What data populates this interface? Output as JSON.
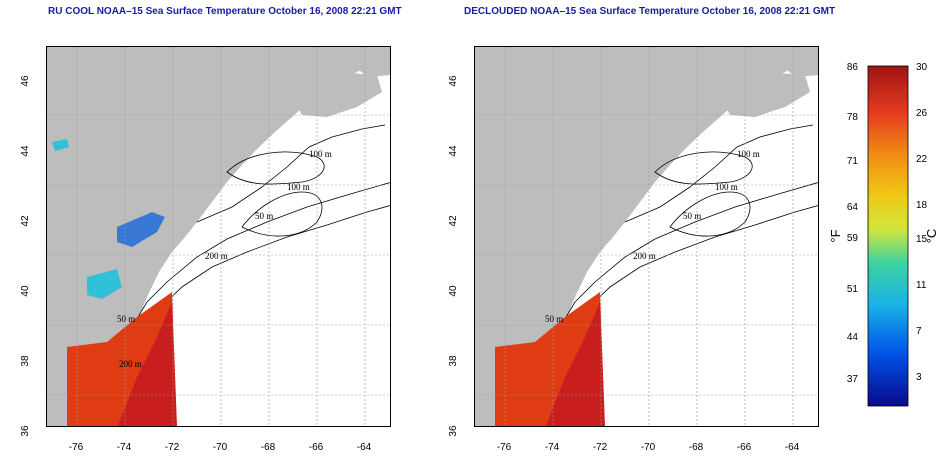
{
  "left_title": "RU COOL NOAA–15 Sea Surface Temperature October 16, 2008 22:21 GMT",
  "right_title": "DECLOUDED NOAA–15 Sea Surface Temperature October 16, 2008 22:21 GMT",
  "x_ticks": [
    "-76",
    "-74",
    "-72",
    "-70",
    "-68",
    "-66",
    "-64"
  ],
  "y_ticks": [
    "36",
    "38",
    "40",
    "42",
    "44",
    "46"
  ],
  "contour_labels": [
    "100 m",
    "100 m",
    "50 m",
    "200 m",
    "50 m",
    "200 m"
  ],
  "colorbar": {
    "f_labels": [
      "86",
      "78",
      "71",
      "64",
      "59",
      "51",
      "44",
      "37"
    ],
    "c_labels": [
      "30",
      "26",
      "22",
      "18",
      "15",
      "11",
      "7",
      "3"
    ],
    "f_unit": "°F",
    "c_unit": "°C"
  },
  "colors": {
    "land": "#bdbdbd",
    "title": "#1a1aa6",
    "warm": "#e03c14",
    "hot": "#c81e1e"
  }
}
